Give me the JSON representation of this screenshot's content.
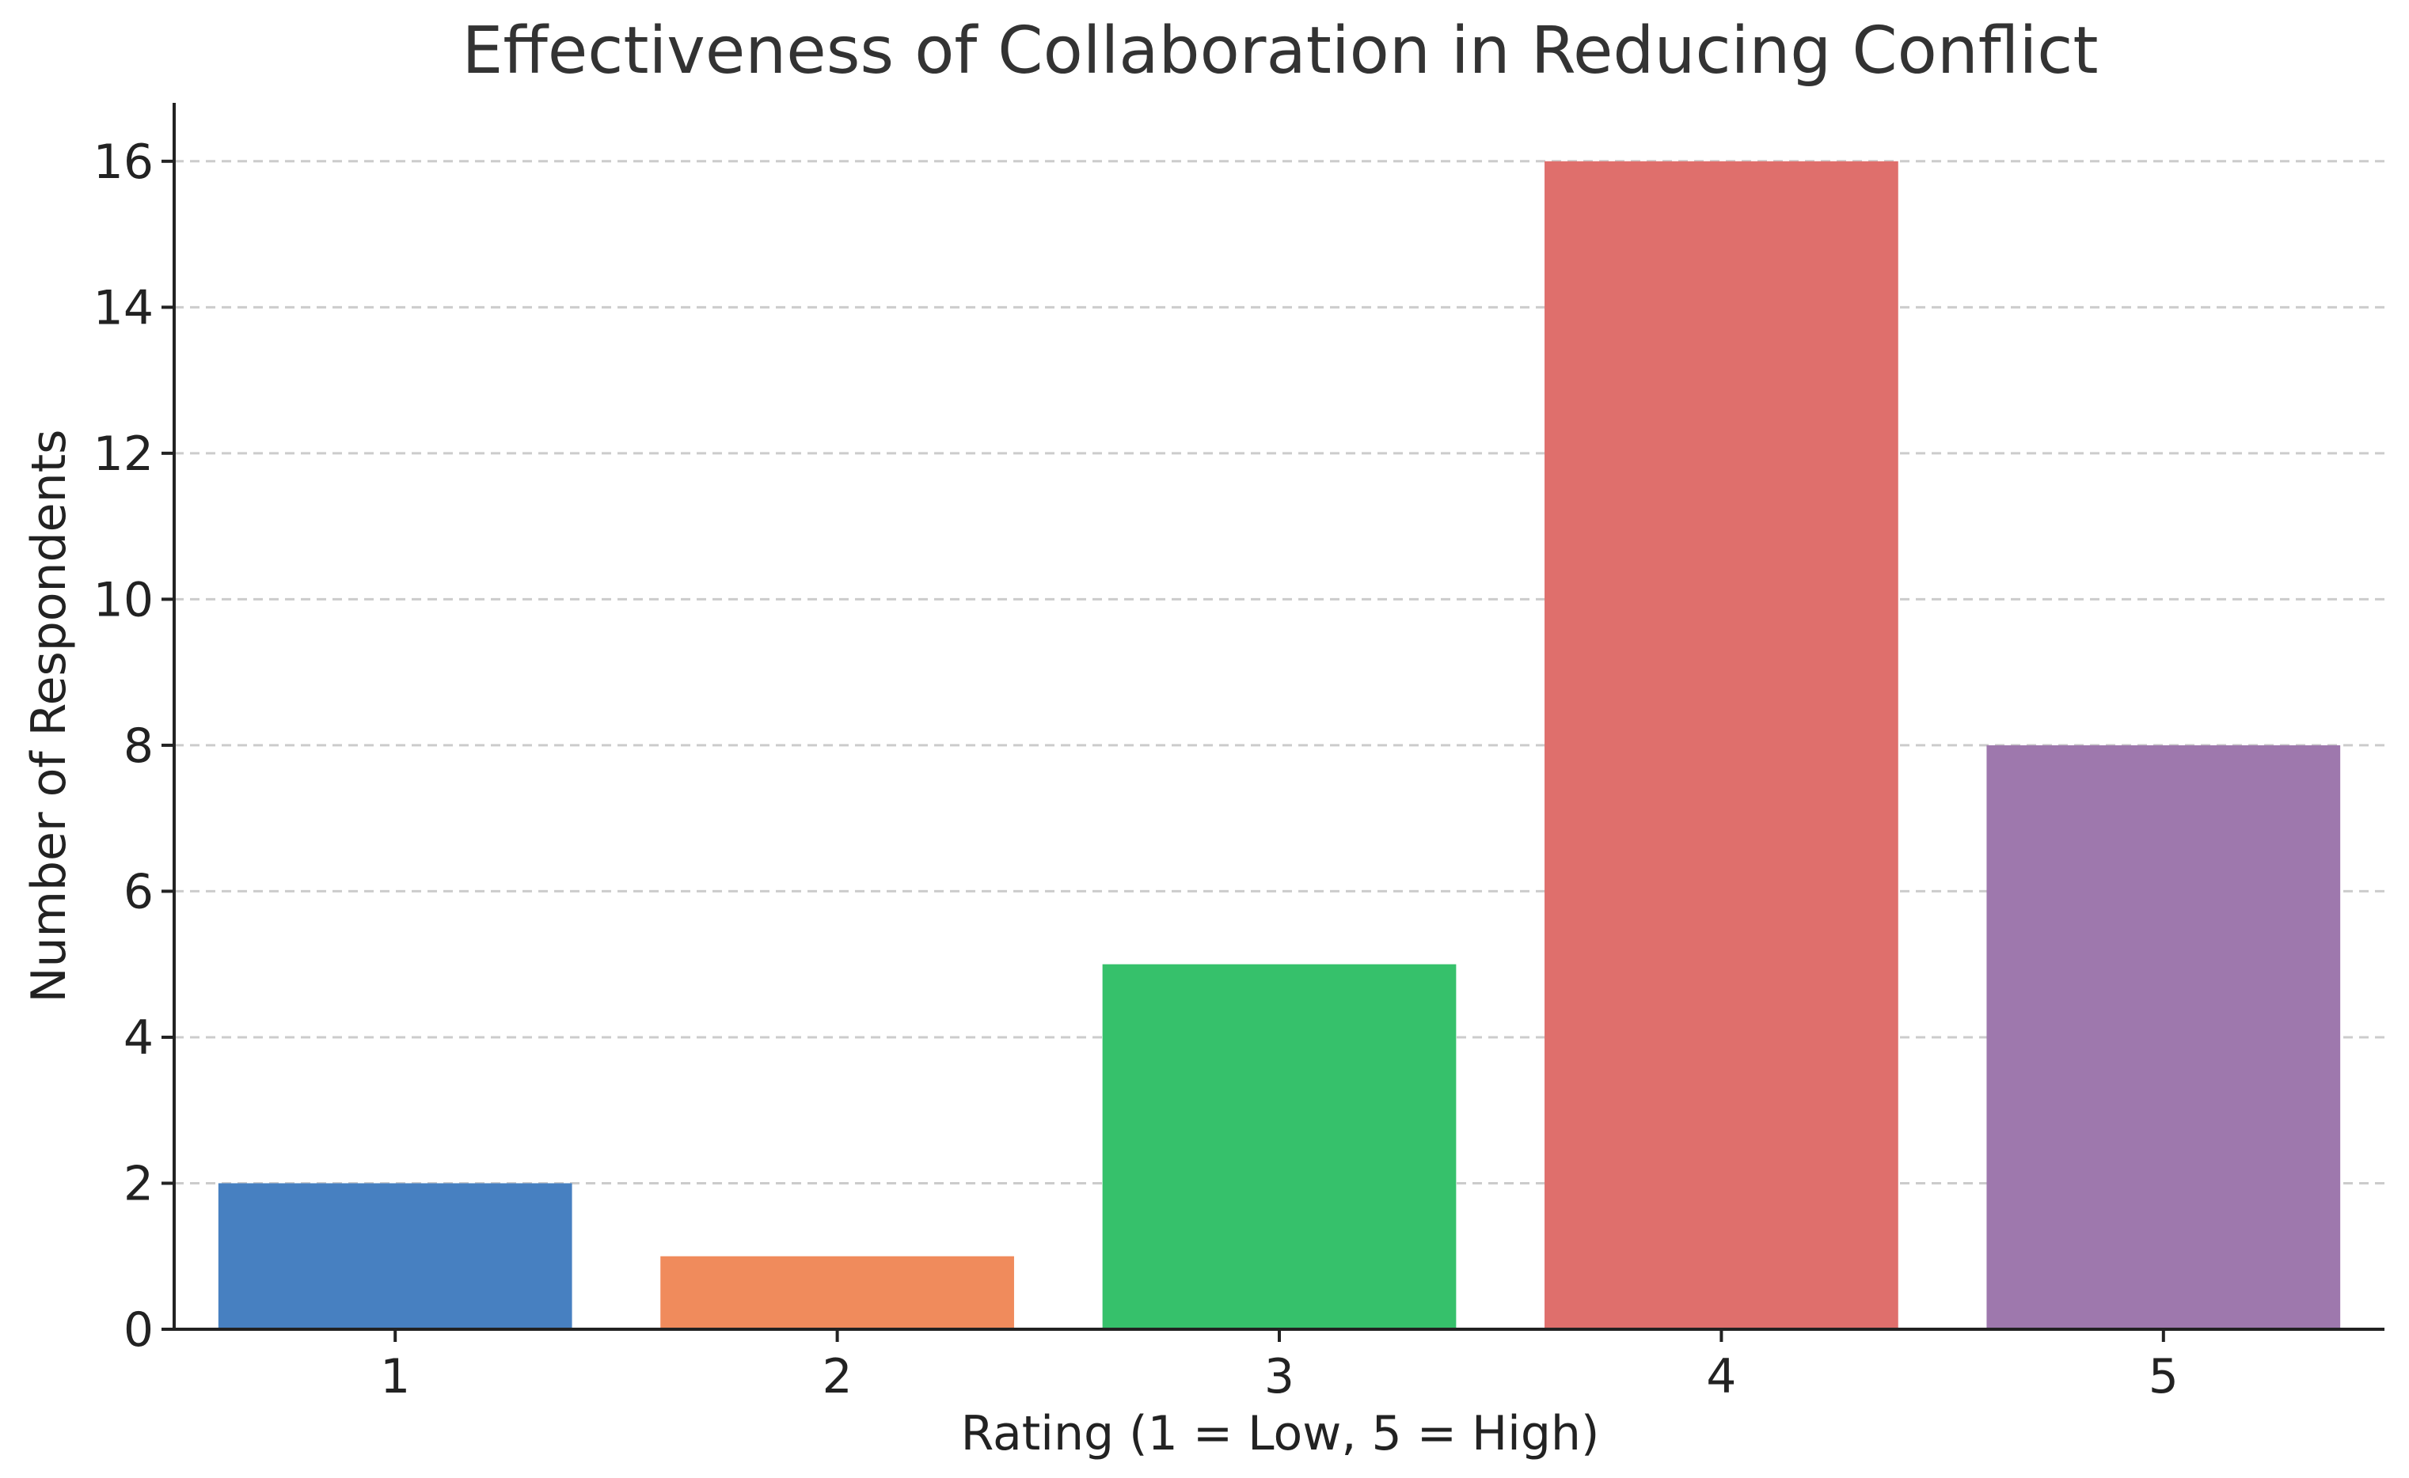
{
  "chart_data": {
    "type": "bar",
    "title": "Effectiveness of Collaboration in Reducing Conflict",
    "xlabel": "Rating (1 = Low, 5 = High)",
    "ylabel": "Number of Respondents",
    "categories": [
      "1",
      "2",
      "3",
      "4",
      "5"
    ],
    "values": [
      2,
      1,
      5,
      16,
      8
    ],
    "colors": [
      "#4780c1",
      "#f08b5c",
      "#36c16b",
      "#df6f6c",
      "#9e78ad"
    ],
    "ylim": [
      0,
      16.8
    ],
    "yticks": [
      0,
      2,
      4,
      6,
      8,
      10,
      12,
      14,
      16
    ],
    "grid": true,
    "grid_axis": "y",
    "legend": "none"
  }
}
